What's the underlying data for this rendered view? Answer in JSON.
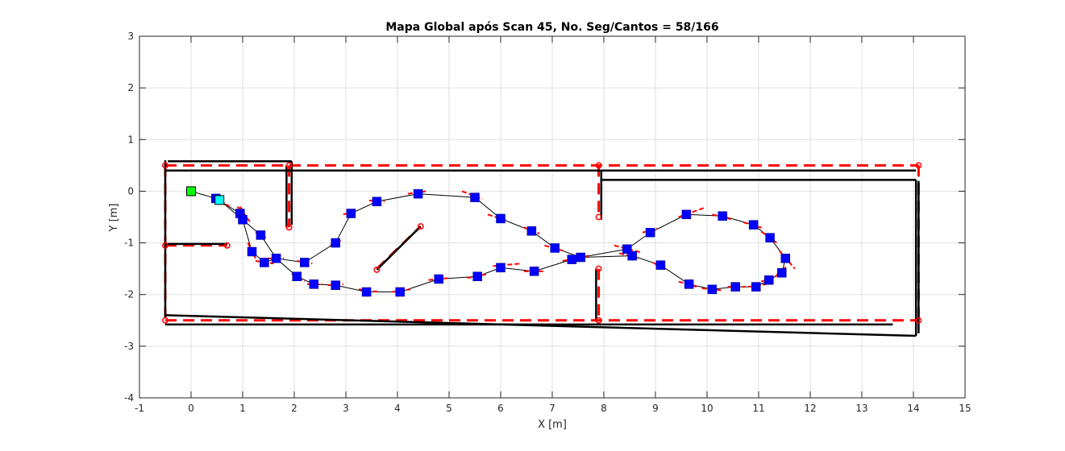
{
  "chart_data": {
    "type": "scatter",
    "title": "Mapa Global após Scan 45, No. Seg/Cantos = 58/166",
    "xlabel": "X [m]",
    "ylabel": "Y [m]",
    "xlim": [
      -1,
      15
    ],
    "ylim": [
      -4,
      3
    ],
    "xticks": [
      -1,
      0,
      1,
      2,
      3,
      4,
      5,
      6,
      7,
      8,
      9,
      10,
      11,
      12,
      13,
      14,
      15
    ],
    "yticks": [
      -4,
      -3,
      -2,
      -1,
      0,
      1,
      2,
      3
    ],
    "grid": true,
    "colors": {
      "reference_map": "#ff0000",
      "estimated_map": "#000000",
      "poses": "#0000ff",
      "path": "#000000",
      "start": "#00ff00",
      "current": "#00ffff"
    },
    "reference_walls": [
      [
        [
          -0.5,
          0.5
        ],
        [
          14.1,
          0.5
        ]
      ],
      [
        [
          -0.5,
          -2.5
        ],
        [
          14.1,
          -2.5
        ]
      ],
      [
        [
          -0.5,
          0.5
        ],
        [
          -0.5,
          -2.5
        ]
      ],
      [
        [
          14.1,
          0.5
        ],
        [
          14.1,
          -2.5
        ]
      ],
      [
        [
          1.9,
          0.5
        ],
        [
          1.9,
          -0.7
        ]
      ],
      [
        [
          7.9,
          0.5
        ],
        [
          7.9,
          -0.5
        ]
      ],
      [
        [
          7.9,
          -1.5
        ],
        [
          7.9,
          -2.5
        ]
      ],
      [
        [
          -0.5,
          -1.05
        ],
        [
          0.7,
          -1.05
        ]
      ],
      [
        [
          3.6,
          -1.5
        ],
        [
          4.45,
          -0.68
        ]
      ]
    ],
    "reference_corners": [
      [
        -0.5,
        0.5
      ],
      [
        1.9,
        0.5
      ],
      [
        7.9,
        0.5
      ],
      [
        14.1,
        0.5
      ],
      [
        -0.5,
        -2.5
      ],
      [
        7.9,
        -2.5
      ],
      [
        14.1,
        -2.5
      ],
      [
        -0.5,
        -1.05
      ],
      [
        0.7,
        -1.05
      ],
      [
        1.9,
        -0.7
      ],
      [
        7.9,
        -0.5
      ],
      [
        7.9,
        -1.5
      ],
      [
        3.6,
        -1.52
      ],
      [
        4.45,
        -0.68
      ]
    ],
    "estimated_walls": [
      [
        [
          -0.45,
          0.58
        ],
        [
          1.95,
          0.58
        ]
      ],
      [
        [
          -0.5,
          0.4
        ],
        [
          7.95,
          0.4
        ]
      ],
      [
        [
          7.95,
          0.4
        ],
        [
          14.05,
          0.4
        ]
      ],
      [
        [
          7.95,
          0.22
        ],
        [
          14.05,
          0.22
        ]
      ],
      [
        [
          -0.5,
          0.6
        ],
        [
          -0.5,
          -2.45
        ]
      ],
      [
        [
          1.95,
          0.58
        ],
        [
          1.95,
          -0.65
        ]
      ],
      [
        [
          1.85,
          0.5
        ],
        [
          1.85,
          -0.7
        ]
      ],
      [
        [
          7.95,
          0.4
        ],
        [
          7.95,
          -0.55
        ]
      ],
      [
        [
          7.85,
          -1.5
        ],
        [
          7.85,
          -2.5
        ]
      ],
      [
        [
          14.05,
          0.22
        ],
        [
          14.05,
          -2.8
        ]
      ],
      [
        [
          14.1,
          0.2
        ],
        [
          14.1,
          -2.75
        ]
      ],
      [
        [
          -0.5,
          -1.02
        ],
        [
          0.7,
          -1.02
        ]
      ],
      [
        [
          -0.5,
          -2.4
        ],
        [
          14.05,
          -2.8
        ]
      ],
      [
        [
          -0.5,
          -2.58
        ],
        [
          13.6,
          -2.58
        ]
      ],
      [
        [
          3.6,
          -1.52
        ],
        [
          4.45,
          -0.68
        ]
      ]
    ],
    "path": [
      [
        0,
        0
      ],
      [
        0.48,
        -0.14
      ],
      [
        0.95,
        -0.43
      ],
      [
        1.0,
        -0.55
      ],
      [
        1.18,
        -1.17
      ],
      [
        1.42,
        -1.38
      ],
      [
        1.65,
        -1.3
      ],
      [
        2.05,
        -1.65
      ],
      [
        2.38,
        -1.8
      ],
      [
        2.8,
        -1.82
      ],
      [
        3.4,
        -1.95
      ],
      [
        4.05,
        -1.95
      ],
      [
        4.8,
        -1.7
      ],
      [
        5.55,
        -1.65
      ],
      [
        6.0,
        -1.48
      ],
      [
        6.65,
        -1.55
      ],
      [
        7.38,
        -1.32
      ],
      [
        7.55,
        -1.28
      ],
      [
        8.55,
        -1.25
      ],
      [
        9.1,
        -1.43
      ],
      [
        9.65,
        -1.8
      ],
      [
        10.1,
        -1.9
      ],
      [
        10.55,
        -1.85
      ],
      [
        10.95,
        -1.85
      ],
      [
        11.2,
        -1.72
      ],
      [
        11.45,
        -1.58
      ],
      [
        11.52,
        -1.3
      ],
      [
        11.22,
        -0.9
      ],
      [
        10.9,
        -0.65
      ],
      [
        10.3,
        -0.48
      ],
      [
        9.6,
        -0.45
      ],
      [
        8.9,
        -0.8
      ],
      [
        8.45,
        -1.12
      ],
      [
        7.55,
        -1.28
      ],
      [
        7.05,
        -1.1
      ],
      [
        6.6,
        -0.77
      ],
      [
        6.0,
        -0.53
      ],
      [
        5.5,
        -0.12
      ],
      [
        4.4,
        -0.05
      ],
      [
        3.6,
        -0.2
      ],
      [
        3.1,
        -0.43
      ],
      [
        2.8,
        -1.0
      ],
      [
        2.2,
        -1.38
      ],
      [
        1.65,
        -1.3
      ],
      [
        1.35,
        -0.85
      ],
      [
        1.0,
        -0.55
      ],
      [
        0.55,
        -0.17
      ]
    ],
    "poses": [
      [
        0.48,
        -0.14
      ],
      [
        0.95,
        -0.43
      ],
      [
        1.0,
        -0.55
      ],
      [
        1.18,
        -1.17
      ],
      [
        1.42,
        -1.38
      ],
      [
        1.65,
        -1.3
      ],
      [
        2.05,
        -1.65
      ],
      [
        2.38,
        -1.8
      ],
      [
        2.8,
        -1.82
      ],
      [
        3.4,
        -1.95
      ],
      [
        4.05,
        -1.95
      ],
      [
        4.8,
        -1.7
      ],
      [
        5.55,
        -1.65
      ],
      [
        6.0,
        -1.48
      ],
      [
        6.65,
        -1.55
      ],
      [
        7.38,
        -1.32
      ],
      [
        7.55,
        -1.28
      ],
      [
        8.55,
        -1.25
      ],
      [
        9.1,
        -1.43
      ],
      [
        9.65,
        -1.8
      ],
      [
        10.1,
        -1.9
      ],
      [
        10.55,
        -1.85
      ],
      [
        10.95,
        -1.85
      ],
      [
        11.2,
        -1.72
      ],
      [
        11.45,
        -1.58
      ],
      [
        11.52,
        -1.3
      ],
      [
        11.22,
        -0.9
      ],
      [
        10.9,
        -0.65
      ],
      [
        10.3,
        -0.48
      ],
      [
        9.6,
        -0.45
      ],
      [
        8.9,
        -0.8
      ],
      [
        8.45,
        -1.12
      ],
      [
        7.05,
        -1.1
      ],
      [
        6.6,
        -0.77
      ],
      [
        6.0,
        -0.53
      ],
      [
        5.5,
        -0.12
      ],
      [
        4.4,
        -0.05
      ],
      [
        3.6,
        -0.2
      ],
      [
        3.1,
        -0.43
      ],
      [
        2.8,
        -1.0
      ],
      [
        2.2,
        -1.38
      ],
      [
        1.35,
        -0.85
      ]
    ],
    "scan_segments": [
      [
        [
          0.45,
          -0.1
        ],
        [
          0.75,
          -0.3
        ]
      ],
      [
        [
          0.9,
          -0.3
        ],
        [
          1.15,
          -0.6
        ]
      ],
      [
        [
          0.95,
          -0.3
        ],
        [
          1.1,
          -0.55
        ]
      ],
      [
        [
          1.1,
          -1.0
        ],
        [
          1.25,
          -1.3
        ]
      ],
      [
        [
          1.25,
          -1.35
        ],
        [
          1.6,
          -1.4
        ]
      ],
      [
        [
          1.5,
          -1.3
        ],
        [
          1.8,
          -1.3
        ]
      ],
      [
        [
          1.95,
          -1.6
        ],
        [
          2.2,
          -1.75
        ]
      ],
      [
        [
          2.25,
          -1.8
        ],
        [
          2.55,
          -1.8
        ]
      ],
      [
        [
          2.65,
          -1.82
        ],
        [
          2.95,
          -1.8
        ]
      ],
      [
        [
          3.25,
          -1.9
        ],
        [
          3.65,
          -1.95
        ]
      ],
      [
        [
          3.9,
          -1.95
        ],
        [
          4.25,
          -1.9
        ]
      ],
      [
        [
          4.6,
          -1.72
        ],
        [
          5.0,
          -1.68
        ]
      ],
      [
        [
          5.35,
          -1.68
        ],
        [
          5.75,
          -1.6
        ]
      ],
      [
        [
          5.85,
          -1.45
        ],
        [
          6.4,
          -1.4
        ]
      ],
      [
        [
          6.45,
          -1.55
        ],
        [
          6.85,
          -1.55
        ]
      ],
      [
        [
          7.2,
          -1.35
        ],
        [
          7.7,
          -1.25
        ]
      ],
      [
        [
          8.3,
          -1.2
        ],
        [
          8.7,
          -1.3
        ]
      ],
      [
        [
          8.95,
          -1.38
        ],
        [
          9.2,
          -1.52
        ]
      ],
      [
        [
          9.45,
          -1.75
        ],
        [
          9.8,
          -1.85
        ]
      ],
      [
        [
          9.9,
          -1.88
        ],
        [
          10.3,
          -1.92
        ]
      ],
      [
        [
          10.4,
          -1.85
        ],
        [
          10.75,
          -1.85
        ]
      ],
      [
        [
          10.8,
          -1.85
        ],
        [
          11.15,
          -1.8
        ]
      ],
      [
        [
          11.05,
          -1.75
        ],
        [
          11.4,
          -1.62
        ]
      ],
      [
        [
          11.35,
          -1.62
        ],
        [
          11.55,
          -1.45
        ]
      ],
      [
        [
          11.4,
          -1.15
        ],
        [
          11.7,
          -1.5
        ]
      ],
      [
        [
          11.05,
          -0.78
        ],
        [
          11.35,
          -1.0
        ]
      ],
      [
        [
          10.7,
          -0.6
        ],
        [
          11.1,
          -0.72
        ]
      ],
      [
        [
          10.1,
          -0.45
        ],
        [
          10.5,
          -0.55
        ]
      ],
      [
        [
          9.45,
          -0.5
        ],
        [
          9.95,
          -0.32
        ]
      ],
      [
        [
          8.75,
          -0.8
        ],
        [
          9.05,
          -0.72
        ]
      ],
      [
        [
          8.2,
          -1.05
        ],
        [
          8.7,
          -1.18
        ]
      ],
      [
        [
          6.85,
          -1.05
        ],
        [
          7.2,
          -1.15
        ]
      ],
      [
        [
          6.45,
          -0.7
        ],
        [
          6.75,
          -0.82
        ]
      ],
      [
        [
          5.75,
          -0.45
        ],
        [
          6.15,
          -0.58
        ]
      ],
      [
        [
          5.25,
          0.0
        ],
        [
          5.65,
          -0.15
        ]
      ],
      [
        [
          4.2,
          -0.05
        ],
        [
          4.55,
          0.0
        ]
      ],
      [
        [
          3.45,
          -0.18
        ],
        [
          3.75,
          -0.2
        ]
      ],
      [
        [
          2.95,
          -0.45
        ],
        [
          3.2,
          -0.38
        ]
      ],
      [
        [
          2.7,
          -1.05
        ],
        [
          2.9,
          -0.95
        ]
      ],
      [
        [
          2.05,
          -1.35
        ],
        [
          2.35,
          -1.4
        ]
      ],
      [
        [
          1.25,
          -0.8
        ],
        [
          1.45,
          -0.9
        ]
      ]
    ],
    "start": [
      0,
      0
    ],
    "current": [
      0.55,
      -0.17
    ]
  }
}
